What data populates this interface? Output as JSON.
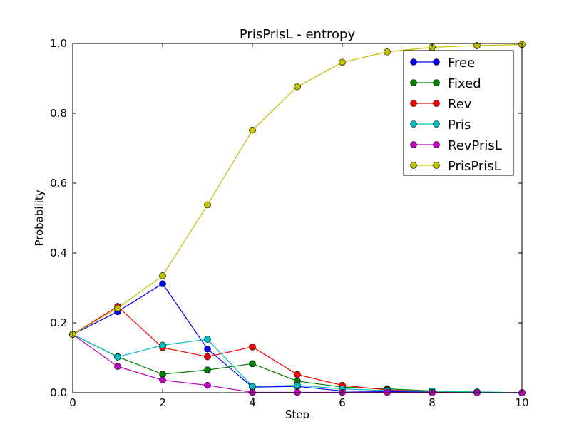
{
  "chart_data": {
    "type": "line",
    "title": "PrisPrisL - entropy",
    "xlabel": "Step",
    "ylabel": "Probability",
    "xlim": [
      0,
      10
    ],
    "ylim": [
      0.0,
      1.0
    ],
    "x_ticks": [
      "0",
      "2",
      "4",
      "6",
      "8",
      "10"
    ],
    "y_ticks": [
      "0.0",
      "0.2",
      "0.4",
      "0.6",
      "0.8",
      "1.0"
    ],
    "grid": false,
    "legend_position": "top-right",
    "x": [
      0,
      1,
      2,
      3,
      4,
      5,
      6,
      7,
      8,
      9,
      10
    ],
    "series": [
      {
        "name": "Free",
        "color": "#0000ff",
        "values": [
          0.167,
          0.232,
          0.312,
          0.125,
          0.016,
          0.018,
          0.005,
          0.003,
          0.002,
          0.001,
          0.0
        ]
      },
      {
        "name": "Fixed",
        "color": "#008000",
        "values": [
          0.167,
          0.103,
          0.053,
          0.065,
          0.083,
          0.033,
          0.016,
          0.011,
          0.005,
          0.002,
          0.0
        ]
      },
      {
        "name": "Rev",
        "color": "#ff0000",
        "values": [
          0.167,
          0.247,
          0.129,
          0.103,
          0.131,
          0.052,
          0.021,
          0.008,
          0.003,
          0.001,
          0.0
        ]
      },
      {
        "name": "Pris",
        "color": "#00bfbf",
        "values": [
          0.167,
          0.102,
          0.136,
          0.153,
          0.018,
          0.021,
          0.011,
          0.006,
          0.004,
          0.002,
          0.0
        ]
      },
      {
        "name": "RevPrisL",
        "color": "#bf00bf",
        "values": [
          0.167,
          0.075,
          0.036,
          0.021,
          0.001,
          0.001,
          0.001,
          0.001,
          0.0,
          0.0,
          0.0
        ]
      },
      {
        "name": "PrisPrisL",
        "color": "#bfbf00",
        "values": [
          0.167,
          0.242,
          0.335,
          0.538,
          0.752,
          0.876,
          0.946,
          0.976,
          0.989,
          0.994,
          0.997
        ]
      }
    ]
  }
}
